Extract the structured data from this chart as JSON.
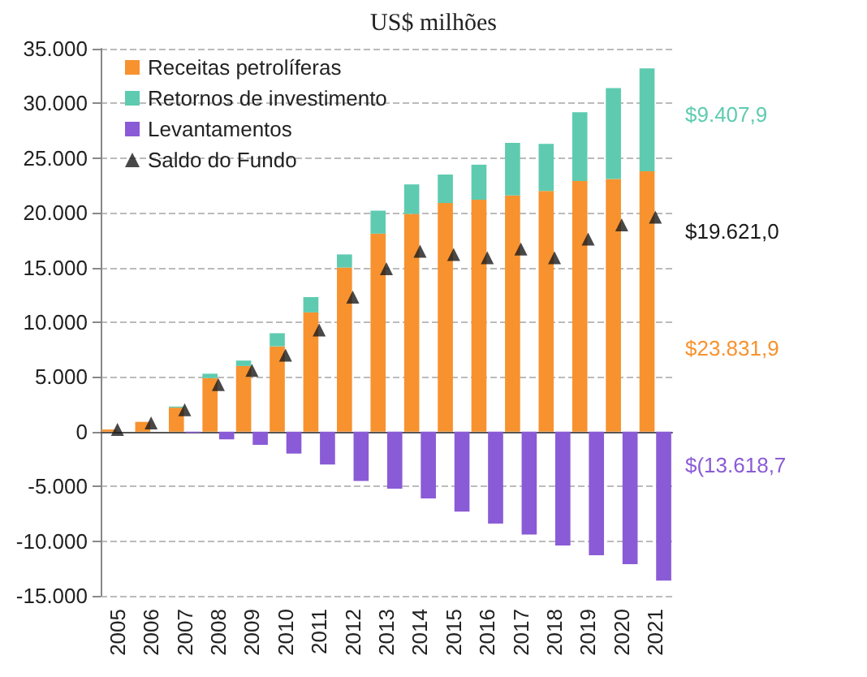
{
  "chart_data": {
    "type": "bar",
    "title": "US$ milhões",
    "stacked": true,
    "categories": [
      "2005",
      "2006",
      "2007",
      "2008",
      "2009",
      "2010",
      "2011",
      "2012",
      "2013",
      "2014",
      "2015",
      "2016",
      "2017",
      "2018",
      "2019",
      "2020",
      "2021"
    ],
    "series": [
      {
        "name": "Receitas petrolíferas",
        "color": "#f7922f",
        "values": [
          200,
          900,
          2200,
          4900,
          6000,
          7800,
          10900,
          15000,
          18100,
          19900,
          20900,
          21200,
          21600,
          22000,
          22900,
          23100,
          23800
        ]
      },
      {
        "name": "Retornos de investimento",
        "color": "#5ecbb0",
        "values": [
          0,
          0,
          100,
          400,
          500,
          1200,
          1400,
          1200,
          2100,
          2700,
          2600,
          3200,
          4800,
          4300,
          6300,
          8300,
          9400
        ]
      },
      {
        "name": "Levantamentos",
        "color": "#8a5bd6",
        "values": [
          0,
          0,
          -100,
          -700,
          -1200,
          -2000,
          -3000,
          -4500,
          -5200,
          -6100,
          -7300,
          -8400,
          -9400,
          -10400,
          -11300,
          -12100,
          -13600
        ]
      },
      {
        "name": "Saldo do Fundo",
        "type": "scatter",
        "color": "#1a1a1a",
        "marker": "triangle",
        "values": [
          200,
          800,
          2000,
          4300,
          5600,
          7000,
          9300,
          12300,
          14900,
          16500,
          16200,
          15900,
          16700,
          15900,
          17600,
          18900,
          19600
        ]
      }
    ],
    "ylim": [
      -15000,
      35000
    ],
    "yticks": [
      {
        "value": -15000,
        "label": "-15.000"
      },
      {
        "value": -10000,
        "label": "-10.000"
      },
      {
        "value": -5000,
        "label": "-5.000"
      },
      0,
      {
        "value": 5000,
        "label": "5.000"
      },
      {
        "value": 10000,
        "label": "10.000"
      },
      {
        "value": 15000,
        "label": "15.000"
      },
      {
        "value": 20000,
        "label": "20.000"
      },
      {
        "value": 25000,
        "label": "25.000"
      },
      {
        "value": 30000,
        "label": "30.000"
      },
      {
        "value": 35000,
        "label": "35.000"
      }
    ],
    "grid": "y",
    "legend": "top left",
    "annotations": [
      "$9.407,9",
      "$19.621,0",
      "$23.831,9",
      "$(13.618,7"
    ]
  }
}
